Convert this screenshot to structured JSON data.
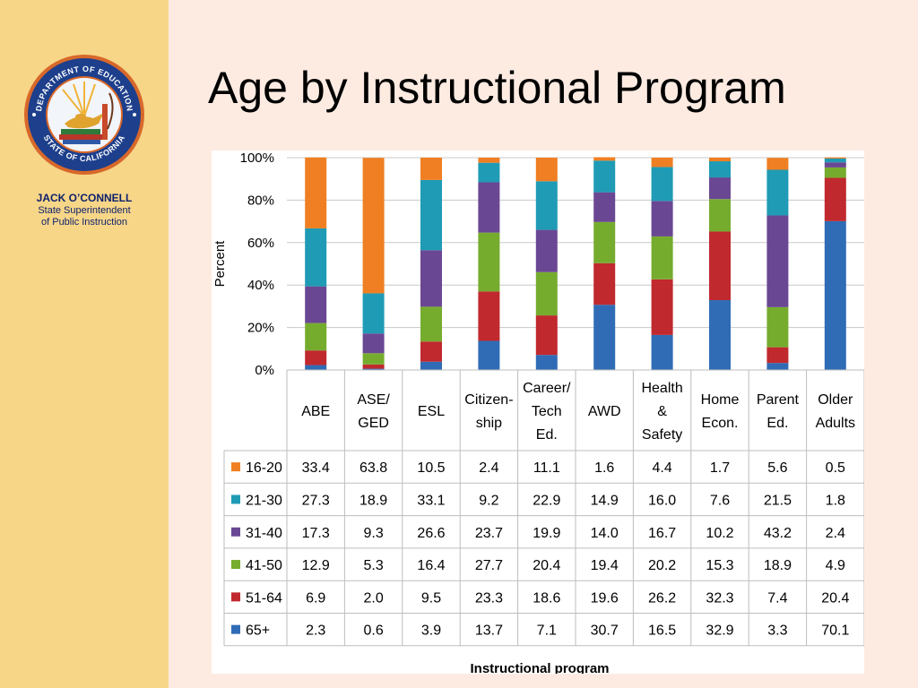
{
  "slide": {
    "title": "Age by Instructional Program"
  },
  "sidebar": {
    "seal_icon": "california-department-of-education-seal-icon",
    "seal_top_text": "DEPARTMENT OF EDUCATION",
    "seal_bottom_text": "STATE OF CALIFORNIA",
    "presenter_name": "JACK O’CONNELL",
    "presenter_role_line1": "State Superintendent",
    "presenter_role_line2": "of Public Instruction"
  },
  "chart_data": {
    "type": "bar",
    "stacked": true,
    "percent_stacked": true,
    "title": "",
    "ylabel": "Percent",
    "xlabel": "Instructional program",
    "ylim": [
      0,
      100
    ],
    "yticks": [
      "0%",
      "20%",
      "40%",
      "60%",
      "80%",
      "100%"
    ],
    "grid": true,
    "legend": "data-table-rows",
    "categories": [
      [
        "ABE"
      ],
      [
        "ASE/",
        "GED"
      ],
      [
        "ESL"
      ],
      [
        "Citizen-",
        "ship"
      ],
      [
        "Career/",
        "Tech",
        "Ed."
      ],
      [
        "AWD"
      ],
      [
        "Health",
        "&",
        "Safety"
      ],
      [
        "Home",
        "Econ."
      ],
      [
        "Parent",
        "Ed."
      ],
      [
        "Older",
        "Adults"
      ]
    ],
    "series": [
      {
        "name": "16-20",
        "color": "#ef7f22",
        "values": [
          "33.4",
          "63.8",
          "10.5",
          "2.4",
          "11.1",
          "1.6",
          "4.4",
          "1.7",
          "5.6",
          "0.5"
        ]
      },
      {
        "name": "21-30",
        "color": "#1f9bb5",
        "values": [
          "27.3",
          "18.9",
          "33.1",
          "9.2",
          "22.9",
          "14.9",
          "16.0",
          "7.6",
          "21.5",
          "1.8"
        ]
      },
      {
        "name": "31-40",
        "color": "#6a4793",
        "values": [
          "17.3",
          "9.3",
          "26.6",
          "23.7",
          "19.9",
          "14.0",
          "16.7",
          "10.2",
          "43.2",
          "2.4"
        ]
      },
      {
        "name": "41-50",
        "color": "#76ac2e",
        "values": [
          "12.9",
          "5.3",
          "16.4",
          "27.7",
          "20.4",
          "19.4",
          "20.2",
          "15.3",
          "18.9",
          "4.9"
        ]
      },
      {
        "name": "51-64",
        "color": "#c0292e",
        "values": [
          "6.9",
          "2.0",
          "9.5",
          "23.3",
          "18.6",
          "19.6",
          "26.2",
          "32.3",
          "7.4",
          "20.4"
        ]
      },
      {
        "name": "65+",
        "color": "#2f6cb5",
        "values": [
          "2.3",
          "0.6",
          "3.9",
          "13.7",
          "7.1",
          "30.7",
          "16.5",
          "32.9",
          "3.3",
          "70.1"
        ]
      }
    ]
  }
}
